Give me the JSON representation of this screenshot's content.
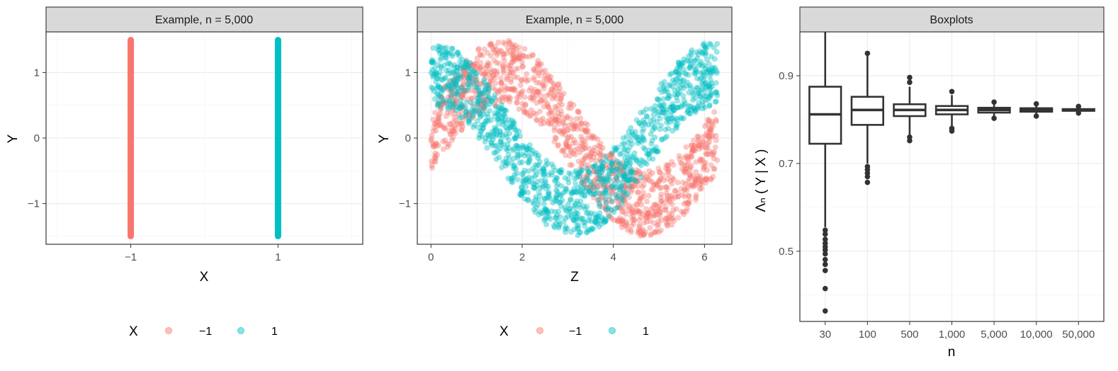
{
  "chart_data": [
    {
      "type": "scatter",
      "title": "Example, n = 5,000",
      "xlabel": "X",
      "ylabel": "Y",
      "x_ticks": [
        "−1",
        "1"
      ],
      "x_tick_values": [
        -1,
        1
      ],
      "y_ticks": [
        "−1",
        "0",
        "1"
      ],
      "y_tick_values": [
        -1,
        0,
        1
      ],
      "xlim": [
        -2.15,
        2.15
      ],
      "ylim": [
        -1.62,
        1.62
      ],
      "grid": true,
      "legend": {
        "title": "X",
        "position": "bottom",
        "entries": [
          "−1",
          "1"
        ]
      },
      "series": [
        {
          "name": "−1",
          "color": "#F8766D",
          "x": -1,
          "y_range": [
            -1.5,
            1.5
          ]
        },
        {
          "name": "1",
          "color": "#00BFC4",
          "x": 1,
          "y_range": [
            -1.5,
            1.5
          ]
        }
      ]
    },
    {
      "type": "scatter",
      "title": "Example, n = 5,000",
      "xlabel": "Z",
      "ylabel": "Y",
      "x_ticks": [
        "0",
        "2",
        "4",
        "6"
      ],
      "x_tick_values": [
        0,
        2,
        4,
        6
      ],
      "y_ticks": [
        "−1",
        "0",
        "1"
      ],
      "y_tick_values": [
        -1,
        0,
        1
      ],
      "xlim": [
        -0.3,
        6.6
      ],
      "ylim": [
        -1.62,
        1.62
      ],
      "grid": true,
      "legend": {
        "title": "X",
        "position": "bottom",
        "entries": [
          "−1",
          "1"
        ]
      },
      "series": [
        {
          "name": "−1",
          "color": "#F8766D",
          "x_range": [
            0,
            6.2832
          ],
          "y_center": "sin(z)",
          "band_halfwidth": 0.5
        },
        {
          "name": "1",
          "color": "#00BFC4",
          "x_range": [
            0,
            6.2832
          ],
          "y_center": "cos(z)",
          "band_halfwidth": 0.5
        }
      ]
    },
    {
      "type": "boxplot",
      "title": "Boxplots",
      "xlabel": "n",
      "ylabel": "Λₙ ( Y | X )",
      "categories": [
        "30",
        "100",
        "500",
        "1,000",
        "5,000",
        "10,000",
        "50,000"
      ],
      "y_ticks": [
        "0.5",
        "0.7",
        "0.9"
      ],
      "y_tick_values": [
        0.5,
        0.7,
        0.9
      ],
      "ylim": [
        0.34,
        1.0
      ],
      "grid": true,
      "boxes": [
        {
          "q1": 0.745,
          "median": 0.812,
          "q3": 0.875,
          "whisker_low": 0.555,
          "whisker_high": 1.0,
          "outliers": [
            0.548,
            0.539,
            0.527,
            0.518,
            0.51,
            0.503,
            0.494,
            0.481,
            0.47,
            0.456,
            0.415,
            0.364
          ]
        },
        {
          "q1": 0.788,
          "median": 0.822,
          "q3": 0.852,
          "whisker_low": 0.7,
          "whisker_high": 0.948,
          "outliers": [
            0.693,
            0.686,
            0.678,
            0.67,
            0.657,
            0.951
          ]
        },
        {
          "q1": 0.808,
          "median": 0.822,
          "q3": 0.835,
          "whisker_low": 0.765,
          "whisker_high": 0.875,
          "outliers": [
            0.76,
            0.752,
            0.885,
            0.896
          ]
        },
        {
          "q1": 0.812,
          "median": 0.822,
          "q3": 0.831,
          "whisker_low": 0.785,
          "whisker_high": 0.856,
          "outliers": [
            0.78,
            0.774,
            0.864
          ]
        },
        {
          "q1": 0.816,
          "median": 0.822,
          "q3": 0.827,
          "whisker_low": 0.806,
          "whisker_high": 0.836,
          "outliers": [
            0.803,
            0.84
          ]
        },
        {
          "q1": 0.818,
          "median": 0.822,
          "q3": 0.826,
          "whisker_low": 0.81,
          "whisker_high": 0.832,
          "outliers": [
            0.808,
            0.836
          ]
        },
        {
          "q1": 0.82,
          "median": 0.822,
          "q3": 0.824,
          "whisker_low": 0.817,
          "whisker_high": 0.828,
          "outliers": [
            0.815,
            0.83
          ]
        }
      ]
    }
  ]
}
